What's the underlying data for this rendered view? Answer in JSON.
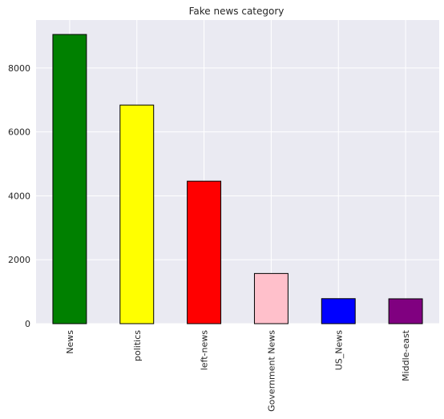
{
  "chart_data": {
    "type": "bar",
    "title": "Fake news category",
    "xlabel": "",
    "ylabel": "",
    "categories": [
      "News",
      "politics",
      "left-news",
      "Government News",
      "US_News",
      "Middle-east"
    ],
    "values": [
      9050,
      6841,
      4459,
      1570,
      783,
      778
    ],
    "colors": [
      "#008000",
      "#ffff00",
      "#ff0000",
      "#ffc0cb",
      "#0000ff",
      "#800080"
    ],
    "edge_color": "#000000",
    "ylim": [
      0,
      9502
    ],
    "yticks": [
      0,
      2000,
      4000,
      6000,
      8000
    ],
    "ytick_labels": [
      "0",
      "2000",
      "4000",
      "6000",
      "8000"
    ],
    "xtick_rotation": "vertical",
    "grid": true,
    "background": "#eaeaf2",
    "grid_color": "#ffffff"
  }
}
